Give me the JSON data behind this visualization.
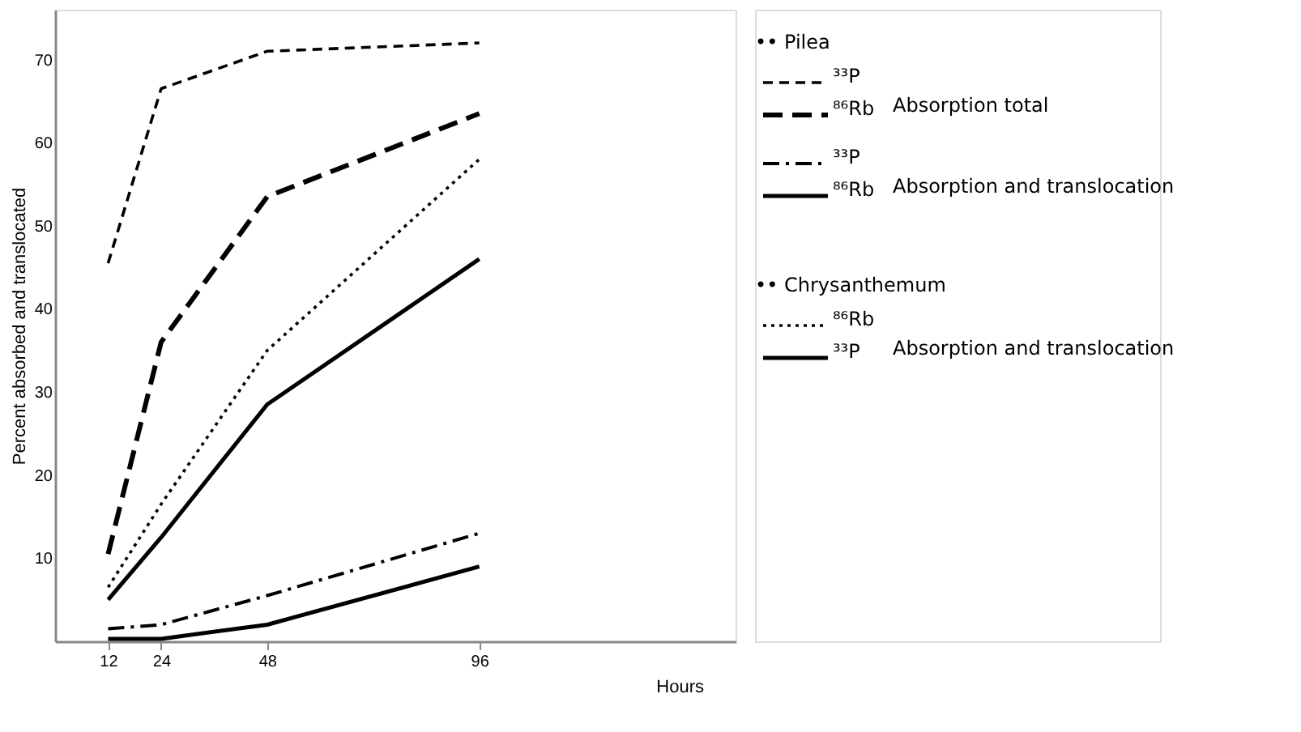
{
  "chart_data": {
    "type": "line",
    "xlabel": "Hours",
    "ylabel": "Percent absorbed and translocated",
    "x": [
      12,
      24,
      48,
      96
    ],
    "series": [
      {
        "name": "³³P",
        "color": "#000000",
        "line_style": "dashed",
        "values": [
          45.5,
          66.5,
          71,
          72
        ]
      },
      {
        "name": "⁸⁶Rb",
        "color": "#000000",
        "line_style": "longdashed",
        "values": [
          10.5,
          36,
          53.5,
          63.5
        ]
      },
      {
        "name": "³³P",
        "color": "#000000",
        "line_style": "dashdot",
        "values": [
          1.5,
          2,
          5.5,
          13
        ]
      },
      {
        "name": "⁸⁶Rb",
        "color": "#000000",
        "line_style": "solid",
        "values": [
          5,
          12.5,
          28.5,
          46
        ]
      },
      {
        "name": "⁸⁶Rb",
        "color": "#000000",
        "line_style": "dotted",
        "values": [
          6.5,
          16.5,
          35,
          58
        ]
      },
      {
        "name": "³³P",
        "color": "#000000",
        "line_style": "solid",
        "values": [
          0.3,
          0.3,
          2,
          9
        ]
      }
    ],
    "annotations": [
      "•• Pilea",
      "Absorption total",
      "Absorption and translocation",
      "•• Chrysanthemum",
      "Absorption and translocation"
    ],
    "xlim": [
      0,
      154
    ],
    "xticks": [
      12,
      24,
      48,
      96
    ],
    "ylim": [
      0,
      76
    ],
    "yticks": [
      10,
      20,
      30,
      40,
      50,
      60,
      70
    ],
    "grid": false,
    "legend": "right",
    "marker": "none"
  }
}
